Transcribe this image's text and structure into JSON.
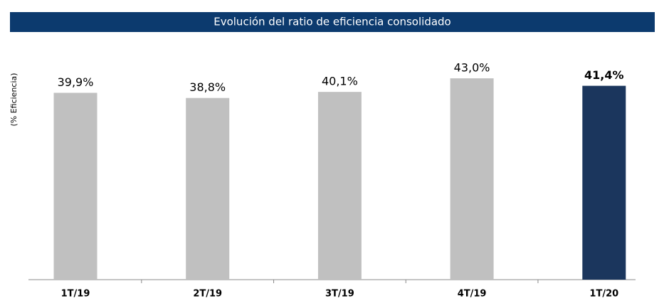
{
  "chart_data": {
    "type": "bar",
    "title": "Evolución del ratio de eficiencia consolidado",
    "y_label": "(% Eficiencia)",
    "categories": [
      "1T/19",
      "2T/19",
      "3T/19",
      "4T/19",
      "1T/20"
    ],
    "values": [
      39.9,
      38.8,
      40.1,
      43.0,
      41.4
    ],
    "value_labels": [
      "39,9%",
      "38,8%",
      "40,1%",
      "43,0%",
      "41,4%"
    ],
    "color": "#c0c0c0",
    "highlight_color": "#1b365d",
    "highlight_index": 4,
    "ylim": [
      0,
      50
    ],
    "grid": false
  }
}
